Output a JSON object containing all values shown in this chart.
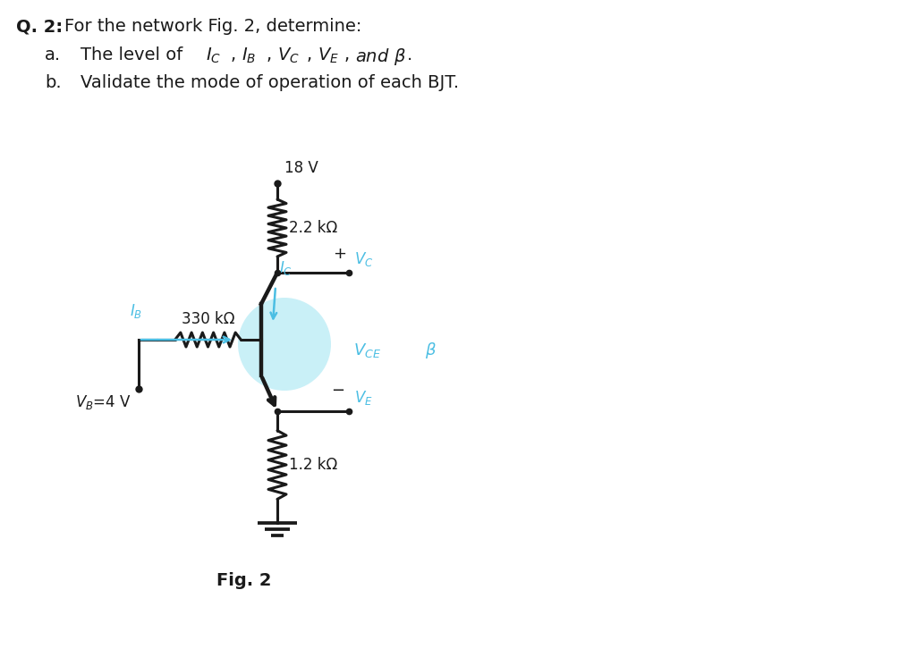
{
  "blue_color": "#4BBEE3",
  "dark_color": "#1a1a1a",
  "bg_color": "#ffffff",
  "vcc_label": "18 V",
  "r1_label": "2.2 kΩ",
  "r2_label": "330 kΩ",
  "r3_label": "1.2 kΩ",
  "fig_label": "Fig. 2"
}
